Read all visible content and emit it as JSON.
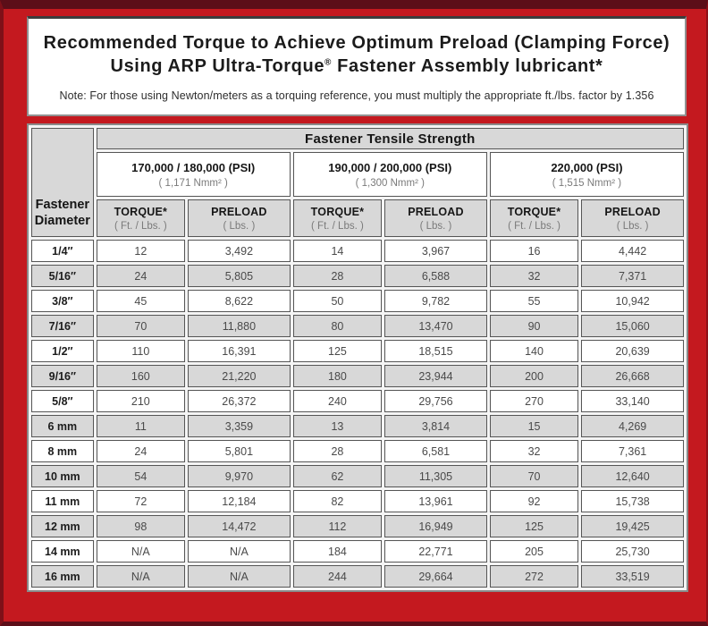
{
  "title": {
    "line1": "Recommended Torque to Achieve Optimum Preload (Clamping Force)",
    "line2_prefix": "Using ARP Ultra-Torque",
    "line2_reg": "®",
    "line2_suffix": " Fastener Assembly lubricant*",
    "note": "Note: For those using Newton/meters as a torquing reference, you must multiply the appropriate ft./lbs. factor by 1.356"
  },
  "table": {
    "tensile_header": "Fastener Tensile Strength",
    "diameter_header_line1": "Fastener",
    "diameter_header_line2": "Diameter",
    "strength_groups": [
      {
        "psi": "170,000 / 180,000 (PSI)",
        "nmm": "( 1,171 Nmm² )"
      },
      {
        "psi": "190,000 / 200,000 (PSI)",
        "nmm": "( 1,300 Nmm² )"
      },
      {
        "psi": "220,000 (PSI)",
        "nmm": "( 1,515 Nmm² )"
      }
    ],
    "col_headers": {
      "torque_label": "TORQUE*",
      "torque_unit": "( Ft. / Lbs. )",
      "preload_label": "PRELOAD",
      "preload_unit": "( Lbs. )"
    },
    "rows": [
      {
        "diameter": "1/4″",
        "values": [
          "12",
          "3,492",
          "14",
          "3,967",
          "16",
          "4,442"
        ]
      },
      {
        "diameter": "5/16″",
        "values": [
          "24",
          "5,805",
          "28",
          "6,588",
          "32",
          "7,371"
        ]
      },
      {
        "diameter": "3/8″",
        "values": [
          "45",
          "8,622",
          "50",
          "9,782",
          "55",
          "10,942"
        ]
      },
      {
        "diameter": "7/16″",
        "values": [
          "70",
          "11,880",
          "80",
          "13,470",
          "90",
          "15,060"
        ]
      },
      {
        "diameter": "1/2″",
        "values": [
          "110",
          "16,391",
          "125",
          "18,515",
          "140",
          "20,639"
        ]
      },
      {
        "diameter": "9/16″",
        "values": [
          "160",
          "21,220",
          "180",
          "23,944",
          "200",
          "26,668"
        ]
      },
      {
        "diameter": "5/8″",
        "values": [
          "210",
          "26,372",
          "240",
          "29,756",
          "270",
          "33,140"
        ]
      },
      {
        "diameter": "6 mm",
        "values": [
          "11",
          "3,359",
          "13",
          "3,814",
          "15",
          "4,269"
        ]
      },
      {
        "diameter": "8 mm",
        "values": [
          "24",
          "5,801",
          "28",
          "6,581",
          "32",
          "7,361"
        ]
      },
      {
        "diameter": "10 mm",
        "values": [
          "54",
          "9,970",
          "62",
          "11,305",
          "70",
          "12,640"
        ]
      },
      {
        "diameter": "11 mm",
        "values": [
          "72",
          "12,184",
          "82",
          "13,961",
          "92",
          "15,738"
        ]
      },
      {
        "diameter": "12 mm",
        "values": [
          "98",
          "14,472",
          "112",
          "16,949",
          "125",
          "19,425"
        ]
      },
      {
        "diameter": "14 mm",
        "values": [
          "N/A",
          "N/A",
          "184",
          "22,771",
          "205",
          "25,730"
        ]
      },
      {
        "diameter": "16 mm",
        "values": [
          "N/A",
          "N/A",
          "244",
          "29,664",
          "272",
          "33,519"
        ]
      }
    ]
  },
  "colors": {
    "frame_red": "#c4191f",
    "frame_dark_maroon": "#5c0e18",
    "cell_gray": "#d8d8d8",
    "cell_border": "#565656",
    "card_border": "#919191"
  }
}
